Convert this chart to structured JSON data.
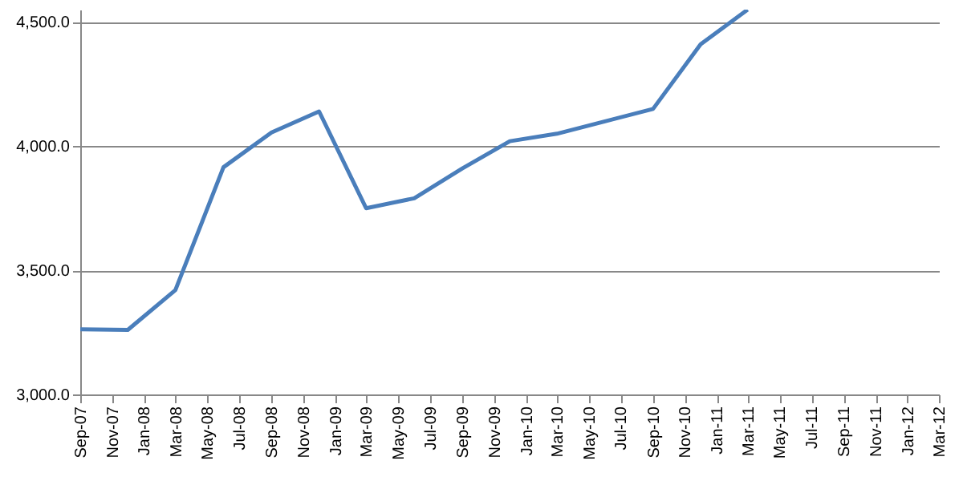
{
  "chart_data": {
    "type": "line",
    "x": [
      "2007-09",
      "2007-12",
      "2008-03",
      "2008-06",
      "2008-09",
      "2008-12",
      "2009-03",
      "2009-06",
      "2009-09",
      "2009-12",
      "2010-03",
      "2010-06",
      "2010-09",
      "2010-12",
      "2011-03"
    ],
    "series": [
      {
        "color": "#4a7ebb",
        "values": [
          3262,
          3260,
          3420,
          3915,
          4055,
          4140,
          3750,
          3790,
          3910,
          4020,
          4050,
          4100,
          4150,
          4410,
          4550
        ]
      }
    ],
    "xlim": [
      "2007-09",
      "2012-03"
    ],
    "xticks": [
      {
        "value": "2007-09",
        "label": "Sep-07"
      },
      {
        "value": "2007-11",
        "label": "Nov-07"
      },
      {
        "value": "2008-01",
        "label": "Jan-08"
      },
      {
        "value": "2008-03",
        "label": "Mar-08"
      },
      {
        "value": "2008-05",
        "label": "May-08"
      },
      {
        "value": "2008-07",
        "label": "Jul-08"
      },
      {
        "value": "2008-09",
        "label": "Sep-08"
      },
      {
        "value": "2008-11",
        "label": "Nov-08"
      },
      {
        "value": "2009-01",
        "label": "Jan-09"
      },
      {
        "value": "2009-03",
        "label": "Mar-09"
      },
      {
        "value": "2009-05",
        "label": "May-09"
      },
      {
        "value": "2009-07",
        "label": "Jul-09"
      },
      {
        "value": "2009-09",
        "label": "Sep-09"
      },
      {
        "value": "2009-11",
        "label": "Nov-09"
      },
      {
        "value": "2010-01",
        "label": "Jan-10"
      },
      {
        "value": "2010-03",
        "label": "Mar-10"
      },
      {
        "value": "2010-05",
        "label": "May-10"
      },
      {
        "value": "2010-07",
        "label": "Jul-10"
      },
      {
        "value": "2010-09",
        "label": "Sep-10"
      },
      {
        "value": "2010-11",
        "label": "Nov-10"
      },
      {
        "value": "2011-01",
        "label": "Jan-11"
      },
      {
        "value": "2011-03",
        "label": "Mar-11"
      },
      {
        "value": "2011-05",
        "label": "May-11"
      },
      {
        "value": "2011-07",
        "label": "Jul-11"
      },
      {
        "value": "2011-09",
        "label": "Sep-11"
      },
      {
        "value": "2011-11",
        "label": "Nov-11"
      },
      {
        "value": "2012-01",
        "label": "Jan-12"
      },
      {
        "value": "2012-03",
        "label": "Mar-12"
      }
    ],
    "ylim": [
      3000,
      4550
    ],
    "yticks": [
      {
        "value": 3000,
        "label": "3,000.0"
      },
      {
        "value": 3500,
        "label": "3,500.0"
      },
      {
        "value": 4000,
        "label": "4,000.0"
      },
      {
        "value": 4500,
        "label": "4,500.0"
      }
    ],
    "grid": "y",
    "marker": "none",
    "line_style": "solid"
  }
}
